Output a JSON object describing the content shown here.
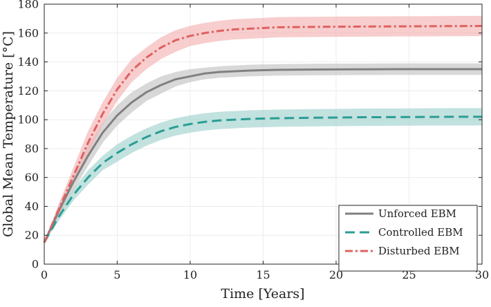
{
  "chart_data": {
    "type": "line",
    "xlabel": "Time [Years]",
    "ylabel": "Global Mean Temperature [°C]",
    "xlim": [
      0,
      30
    ],
    "ylim": [
      0,
      180
    ],
    "xticks": [
      0,
      5,
      10,
      15,
      20,
      25,
      30
    ],
    "yticks": [
      0,
      20,
      40,
      60,
      80,
      100,
      120,
      140,
      160,
      180
    ],
    "grid": true,
    "legend_position": "bottom-right",
    "x": [
      0,
      1,
      2,
      3,
      4,
      5,
      6,
      7,
      8,
      9,
      10,
      11,
      12,
      13,
      14,
      15,
      16,
      18,
      20,
      22,
      24,
      26,
      28,
      30
    ],
    "series": [
      {
        "name": "Unforced EBM",
        "style": "solid",
        "color": "#808080",
        "band_color": "#c8c8c8",
        "values": [
          15,
          37,
          57,
          75,
          91,
          103,
          112,
          119,
          124,
          128,
          130,
          132,
          133,
          133.5,
          134,
          134.3,
          134.5,
          134.7,
          134.8,
          134.9,
          135,
          135,
          135,
          135
        ],
        "band_lower": [
          15,
          33,
          51,
          68,
          84,
          96,
          105,
          113,
          118,
          123,
          126,
          128,
          129,
          129.5,
          130,
          130.3,
          130.5,
          130.7,
          130.8,
          130.9,
          131,
          131,
          131,
          131
        ],
        "band_upper": [
          15,
          41,
          63,
          82,
          98,
          110,
          119,
          125,
          130,
          133,
          135,
          136,
          137,
          137.5,
          138,
          138.3,
          138.5,
          138.7,
          138.8,
          138.9,
          139,
          139,
          139,
          139
        ]
      },
      {
        "name": "Controlled EBM",
        "style": "dashed",
        "color": "#2a9d94",
        "band_color": "#a8d6d2",
        "values": [
          15,
          33,
          48,
          60,
          70,
          77,
          83,
          88,
          92,
          95,
          97,
          98.5,
          99.5,
          100,
          100.5,
          100.8,
          101,
          101.3,
          101.5,
          101.7,
          101.8,
          101.9,
          102,
          102
        ],
        "band_lower": [
          15,
          30,
          44,
          55,
          65,
          71,
          77,
          82,
          86,
          89,
          91,
          92.5,
          93.5,
          94,
          94.5,
          94.8,
          95,
          95.3,
          95.5,
          95.7,
          95.8,
          95.9,
          96,
          96
        ],
        "band_upper": [
          15,
          36,
          52,
          65,
          75,
          83,
          89,
          94,
          98,
          101,
          103,
          104.5,
          105.5,
          106,
          106.5,
          106.8,
          107,
          107.3,
          107.5,
          107.7,
          107.8,
          107.9,
          108,
          108
        ]
      },
      {
        "name": "Disturbed EBM",
        "style": "dash-dot",
        "color": "#e06060",
        "band_color": "#f5b8b8",
        "values": [
          15,
          38,
          61,
          84,
          104,
          121,
          134,
          143,
          150,
          155,
          158,
          160,
          161.5,
          162.5,
          163,
          163.5,
          164,
          164.2,
          164.4,
          164.5,
          164.6,
          164.7,
          164.8,
          164.9
        ],
        "band_lower": [
          15,
          34,
          55,
          76,
          96,
          113,
          126,
          135,
          142,
          147,
          151,
          153,
          154.5,
          155.5,
          156,
          156.5,
          157,
          157.2,
          157.4,
          157.5,
          157.6,
          157.7,
          157.8,
          157.9
        ],
        "band_upper": [
          15,
          42,
          67,
          92,
          112,
          129,
          142,
          150,
          157,
          162,
          165,
          167,
          168.5,
          169.5,
          170,
          170.5,
          171,
          171.2,
          171.4,
          171.5,
          171.6,
          171.7,
          171.8,
          171.9
        ]
      }
    ]
  }
}
